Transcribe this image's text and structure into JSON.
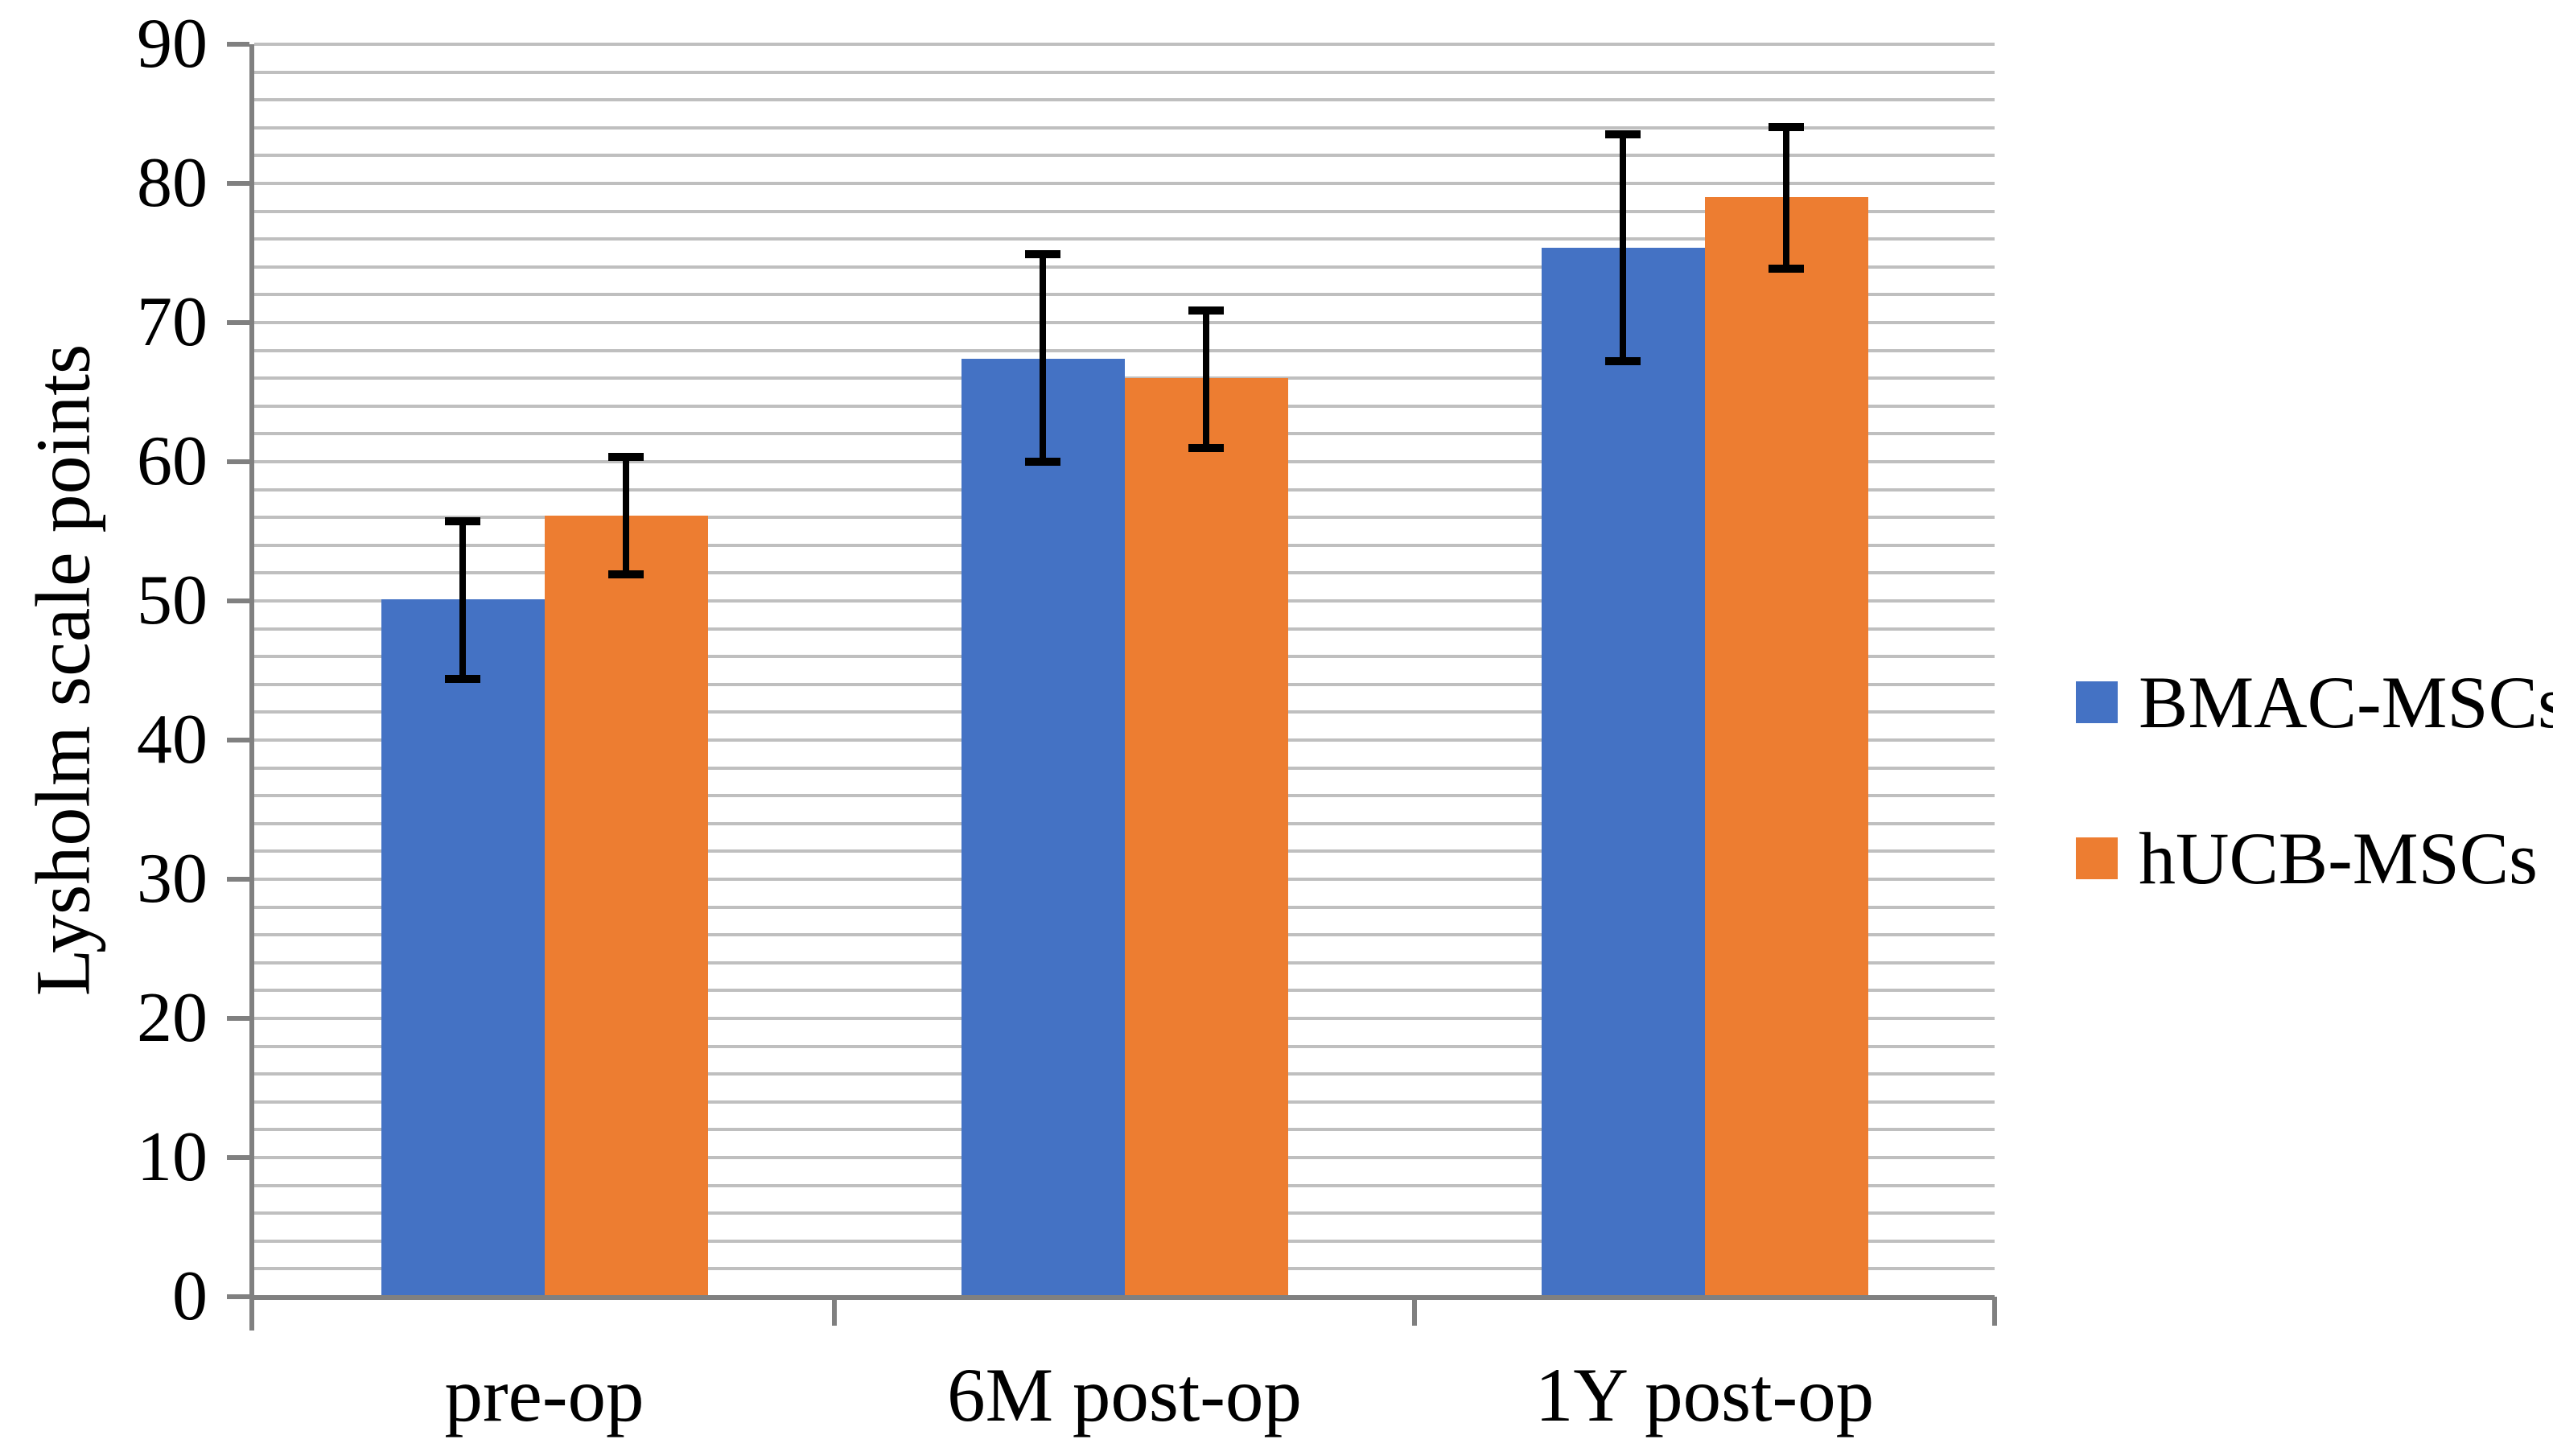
{
  "chart_data": {
    "type": "bar",
    "title": "",
    "xlabel": "",
    "ylabel": "Lysholm scale points",
    "categories": [
      "pre-op",
      "6M post-op",
      "1Y post-op"
    ],
    "series": [
      {
        "name": "BMAC-MSCs",
        "color": "#4472C4",
        "values": [
          50.1,
          67.4,
          75.4
        ],
        "error_low": [
          44.4,
          60.0,
          67.2
        ],
        "error_high": [
          55.8,
          75.0,
          83.6
        ]
      },
      {
        "name": "hUCB-MSCs",
        "color": "#ED7D31",
        "values": [
          56.1,
          66.0,
          79.0
        ],
        "error_low": [
          51.9,
          61.0,
          73.9
        ],
        "error_high": [
          60.4,
          70.9,
          84.1
        ]
      }
    ],
    "ylim": [
      0,
      90
    ],
    "ytick_step": 10,
    "yticks": [
      "0",
      "10",
      "20",
      "30",
      "40",
      "50",
      "60",
      "70",
      "80",
      "90"
    ],
    "minor_grid_step": 2,
    "grid": true,
    "legend_position": "right",
    "error_bars": true,
    "colors": {
      "gridline": "#BFBFBF",
      "axis": "#808080",
      "error_bar": "#000000",
      "text": "#000000",
      "background": "#FFFFFF"
    }
  }
}
